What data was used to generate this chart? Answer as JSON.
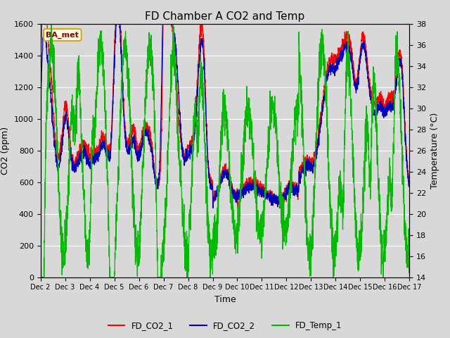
{
  "title": "FD Chamber A CO2 and Temp",
  "xlabel": "Time",
  "ylabel_left": "CO2 (ppm)",
  "ylabel_right": "Temperature (°C)",
  "ylim_left": [
    0,
    1600
  ],
  "ylim_right": [
    14,
    38
  ],
  "yticks_left": [
    0,
    200,
    400,
    600,
    800,
    1000,
    1200,
    1400,
    1600
  ],
  "yticks_right": [
    14,
    16,
    18,
    20,
    22,
    24,
    26,
    28,
    30,
    32,
    34,
    36,
    38
  ],
  "xlim": [
    2,
    17
  ],
  "xtick_labels": [
    "Dec 2",
    "Dec 3",
    "Dec 4",
    "Dec 5",
    "Dec 6",
    "Dec 7",
    "Dec 8",
    "Dec 9",
    "Dec 10",
    "Dec 11",
    "Dec 12",
    "Dec 13",
    "Dec 14",
    "Dec 15",
    "Dec 16",
    "Dec 17"
  ],
  "xtick_positions": [
    2,
    3,
    4,
    5,
    6,
    7,
    8,
    9,
    10,
    11,
    12,
    13,
    14,
    15,
    16,
    17
  ],
  "color_co2_1": "#ff0000",
  "color_co2_2": "#0000bb",
  "color_temp": "#00bb00",
  "legend_labels": [
    "FD_CO2_1",
    "FD_CO2_2",
    "FD_Temp_1"
  ],
  "annotation_text": "BA_met",
  "background_color": "#d8d8d8",
  "plot_bg_color": "#d8d8d8",
  "grid_color": "#ffffff",
  "title_fontsize": 11,
  "axis_fontsize": 9,
  "tick_fontsize": 8,
  "linewidth": 0.9
}
